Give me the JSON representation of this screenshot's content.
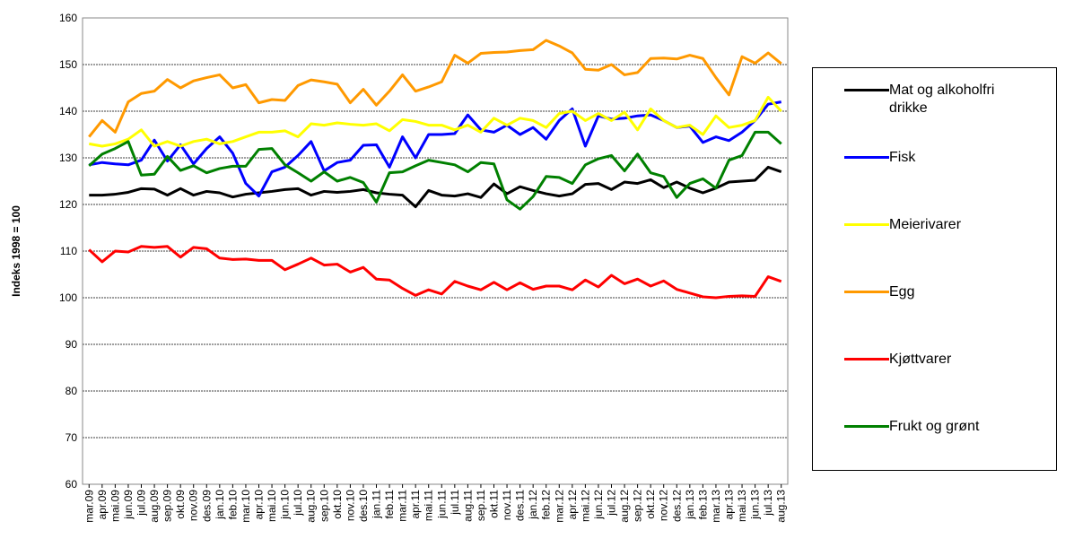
{
  "chart_data": {
    "type": "line",
    "y_label": "Indeks 1998 = 100",
    "categories": [
      "mar.09",
      "apr.09",
      "mai.09",
      "jun.09",
      "jul.09",
      "aug.09",
      "sep.09",
      "okt.09",
      "nov.09",
      "des.09",
      "jan.10",
      "feb.10",
      "mar.10",
      "apr.10",
      "mai.10",
      "jun.10",
      "jul.10",
      "aug.10",
      "sep.10",
      "okt.10",
      "nov.10",
      "des.10",
      "jan.11",
      "feb.11",
      "mar.11",
      "apr.11",
      "mai.11",
      "jun.11",
      "jul.11",
      "aug.11",
      "sep.11",
      "okt.11",
      "nov.11",
      "des.11",
      "jan.12",
      "feb.12",
      "mar.12",
      "apr.12",
      "mai.12",
      "jun.12",
      "jul.12",
      "aug.12",
      "sep.12",
      "okt.12",
      "nov.12",
      "des.12",
      "jan.13",
      "feb.13",
      "mar.13",
      "apr.13",
      "mai.13",
      "jun.13",
      "jul.13",
      "aug.13"
    ],
    "series": [
      {
        "name": "Mat og alkoholfri drikke",
        "color": "#000000",
        "values": [
          122,
          122,
          122.2,
          122.6,
          123.4,
          123.3,
          122,
          123.4,
          122,
          122.8,
          122.5,
          121.6,
          122.2,
          122.5,
          122.8,
          123.2,
          123.4,
          122,
          122.8,
          122.6,
          122.8,
          123.2,
          122.5,
          122.2,
          122,
          119.5,
          123,
          122,
          121.8,
          122.3,
          121.5,
          124.4,
          122.3,
          123.8,
          123,
          122.3,
          121.8,
          122.3,
          124.3,
          124.5,
          123.2,
          124.8,
          124.5,
          125.3,
          123.6,
          124.8,
          123.5,
          122.5,
          123.5,
          124.8,
          125,
          125.2,
          128,
          127
        ]
      },
      {
        "name": "Fisk",
        "color": "#0000ff",
        "values": [
          128.5,
          129,
          128.7,
          128.5,
          129.5,
          133.8,
          129.3,
          132.8,
          128.7,
          132,
          134.5,
          131,
          124.5,
          121.8,
          127,
          128,
          130.5,
          133.5,
          127.2,
          129,
          129.5,
          132.7,
          132.8,
          128,
          134.5,
          130,
          135,
          135,
          135.2,
          139.2,
          136,
          135.5,
          137,
          135,
          136.5,
          134,
          138,
          140.5,
          132.5,
          139,
          138.3,
          138.5,
          139,
          139.2,
          138,
          136.5,
          136.8,
          133.3,
          134.5,
          133.7,
          135.5,
          138,
          141.5,
          142
        ]
      },
      {
        "name": "Meierivarer",
        "color": "#ffff00",
        "values": [
          133,
          132.5,
          133,
          134,
          136,
          132.5,
          133.5,
          132.5,
          133.5,
          134,
          133,
          133.5,
          134.5,
          135.5,
          135.5,
          135.8,
          134.5,
          137.3,
          137,
          137.5,
          137.2,
          137,
          137.3,
          135.8,
          138.2,
          137.8,
          137,
          137,
          136,
          137,
          135.5,
          138.5,
          137,
          138.5,
          138,
          136.5,
          139.5,
          140,
          138,
          139.5,
          138,
          139.8,
          136,
          140.5,
          138,
          136.5,
          137,
          135,
          139,
          136.5,
          137,
          138,
          143,
          140
        ]
      },
      {
        "name": "Egg",
        "color": "#ff9900",
        "values": [
          134.5,
          138,
          135.5,
          142,
          143.8,
          144.3,
          146.8,
          145,
          146.5,
          147.2,
          147.8,
          145,
          145.7,
          141.8,
          142.5,
          142.3,
          145.5,
          146.7,
          146.3,
          145.8,
          141.8,
          144.7,
          141.3,
          144.3,
          147.8,
          144.3,
          145.2,
          146.3,
          152,
          150.3,
          152.4,
          152.6,
          152.7,
          153,
          153.2,
          155.2,
          154,
          152.5,
          149,
          148.8,
          150,
          147.8,
          148.3,
          151.3,
          151.4,
          151.2,
          152,
          151.3,
          147.2,
          143.5,
          151.7,
          150.3,
          152.5,
          150.2
        ]
      },
      {
        "name": "Kjøttvarer",
        "color": "#ff0000",
        "values": [
          110.3,
          107.7,
          110,
          109.8,
          111,
          110.8,
          111,
          108.7,
          110.8,
          110.5,
          108.5,
          108.2,
          108.3,
          108,
          108,
          106,
          107.2,
          108.5,
          107,
          107.2,
          105.5,
          106.5,
          104,
          103.8,
          102,
          100.5,
          101.7,
          100.8,
          103.5,
          102.5,
          101.7,
          103.3,
          101.7,
          103.2,
          101.8,
          102.5,
          102.5,
          101.7,
          103.8,
          102.3,
          104.8,
          103,
          104,
          102.5,
          103.6,
          101.8,
          101,
          100.2,
          100,
          100.3,
          100.4,
          100.3,
          104.5,
          103.5
        ]
      },
      {
        "name": "Frukt og grønt",
        "color": "#008000",
        "values": [
          128.3,
          130.8,
          132,
          133.5,
          126.3,
          126.5,
          130.3,
          127.3,
          128.3,
          126.8,
          127.7,
          128.2,
          128.2,
          131.8,
          132,
          128.5,
          126.8,
          125,
          127,
          125,
          125.8,
          124.7,
          120.5,
          126.8,
          127,
          128.3,
          129.5,
          129,
          128.5,
          127,
          129,
          128.7,
          121,
          119,
          121.7,
          126,
          125.8,
          124.5,
          128.5,
          129.8,
          130.5,
          127.2,
          130.8,
          126.8,
          126,
          121.5,
          124.5,
          125.5,
          123.5,
          129.5,
          130.5,
          135.5,
          135.5,
          133
        ]
      }
    ],
    "ylim": [
      60,
      160
    ],
    "yticks": [
      60,
      70,
      80,
      90,
      100,
      110,
      120,
      130,
      140,
      150,
      160
    ],
    "grid": true
  }
}
